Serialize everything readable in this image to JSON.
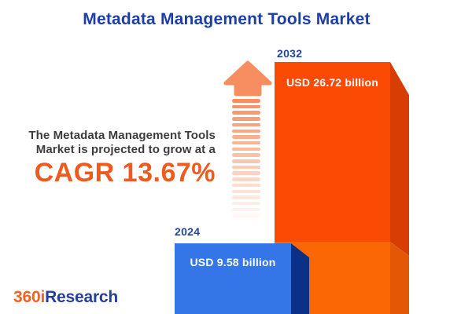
{
  "title": "Metadata Management Tools Market",
  "promo": {
    "line1": "The Metadata Management Tools",
    "line2": "Market is projected to grow at a",
    "cagr": "CAGR 13.67%"
  },
  "chart_data": {
    "type": "bar",
    "title": "Metadata Management Tools Market",
    "categories": [
      "2024",
      "2032"
    ],
    "values": [
      9.58,
      26.72
    ],
    "unit": "USD billion",
    "data_labels": [
      "USD 9.58 billion",
      "USD 26.72 billion"
    ],
    "cagr_percent": 13.67,
    "legend": "none",
    "grid": false,
    "style": "3d-infographic-columns with growth arrow"
  },
  "bars": [
    {
      "year": "2024",
      "label": "USD 9.58 billion",
      "face_color": "#3476E8",
      "side_color": "#0A3087"
    },
    {
      "year": "2032",
      "label": "USD 26.72 billion",
      "face_color": "#FB4A04",
      "face_color_lower": "#FB6705",
      "side_color": "#D83D04",
      "side_color_lower": "#E25804"
    }
  ],
  "arrow": {
    "icon": "growth-arrow-up-icon",
    "color": "#F78E61"
  },
  "logo": {
    "part1": "360i",
    "part2": "Research",
    "part1_color": "#F26322",
    "part2_color": "#253E99"
  },
  "colors": {
    "title_blue": "#1D3EA8",
    "year_label_blue": "#2243A8",
    "body_text": "#3C3C3C",
    "cagr_orange": "#EF5A1E",
    "background": "#FFFFFF"
  }
}
